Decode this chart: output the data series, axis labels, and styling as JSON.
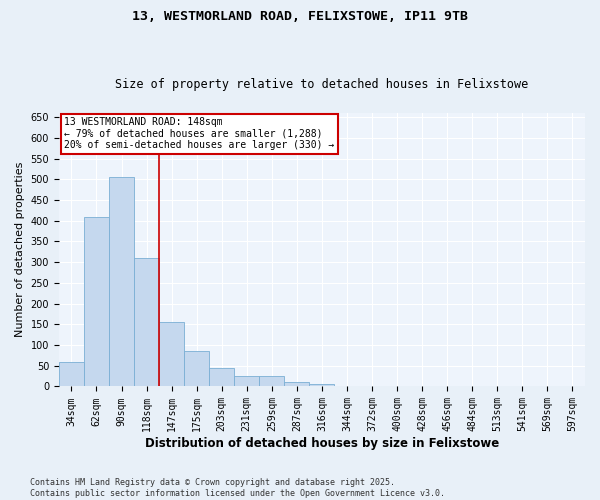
{
  "title1": "13, WESTMORLAND ROAD, FELIXSTOWE, IP11 9TB",
  "title2": "Size of property relative to detached houses in Felixstowe",
  "xlabel": "Distribution of detached houses by size in Felixstowe",
  "ylabel": "Number of detached properties",
  "categories": [
    "34sqm",
    "62sqm",
    "90sqm",
    "118sqm",
    "147sqm",
    "175sqm",
    "203sqm",
    "231sqm",
    "259sqm",
    "287sqm",
    "316sqm",
    "344sqm",
    "372sqm",
    "400sqm",
    "428sqm",
    "456sqm",
    "484sqm",
    "513sqm",
    "541sqm",
    "569sqm",
    "597sqm"
  ],
  "values": [
    60,
    410,
    505,
    310,
    155,
    85,
    45,
    25,
    25,
    10,
    5,
    2,
    2,
    1,
    1,
    0,
    1,
    0,
    0,
    0,
    2
  ],
  "bar_color": "#c5d8ee",
  "bar_edge_color": "#7aafd4",
  "red_line_index": 4,
  "red_line_color": "#cc0000",
  "annotation_text_line1": "13 WESTMORLAND ROAD: 148sqm",
  "annotation_text_line2": "← 79% of detached houses are smaller (1,288)",
  "annotation_text_line3": "20% of semi-detached houses are larger (330) →",
  "annotation_box_edge_color": "#cc0000",
  "ylim": [
    0,
    660
  ],
  "yticks": [
    0,
    50,
    100,
    150,
    200,
    250,
    300,
    350,
    400,
    450,
    500,
    550,
    600,
    650
  ],
  "footer_line1": "Contains HM Land Registry data © Crown copyright and database right 2025.",
  "footer_line2": "Contains public sector information licensed under the Open Government Licence v3.0.",
  "bg_color": "#e8f0f8",
  "plot_bg_color": "#eef4fc",
  "grid_color": "#ffffff",
  "title1_fontsize": 9.5,
  "title2_fontsize": 8.5,
  "ylabel_fontsize": 8,
  "xlabel_fontsize": 8.5,
  "tick_fontsize": 7,
  "footer_fontsize": 6,
  "annotation_fontsize": 7
}
